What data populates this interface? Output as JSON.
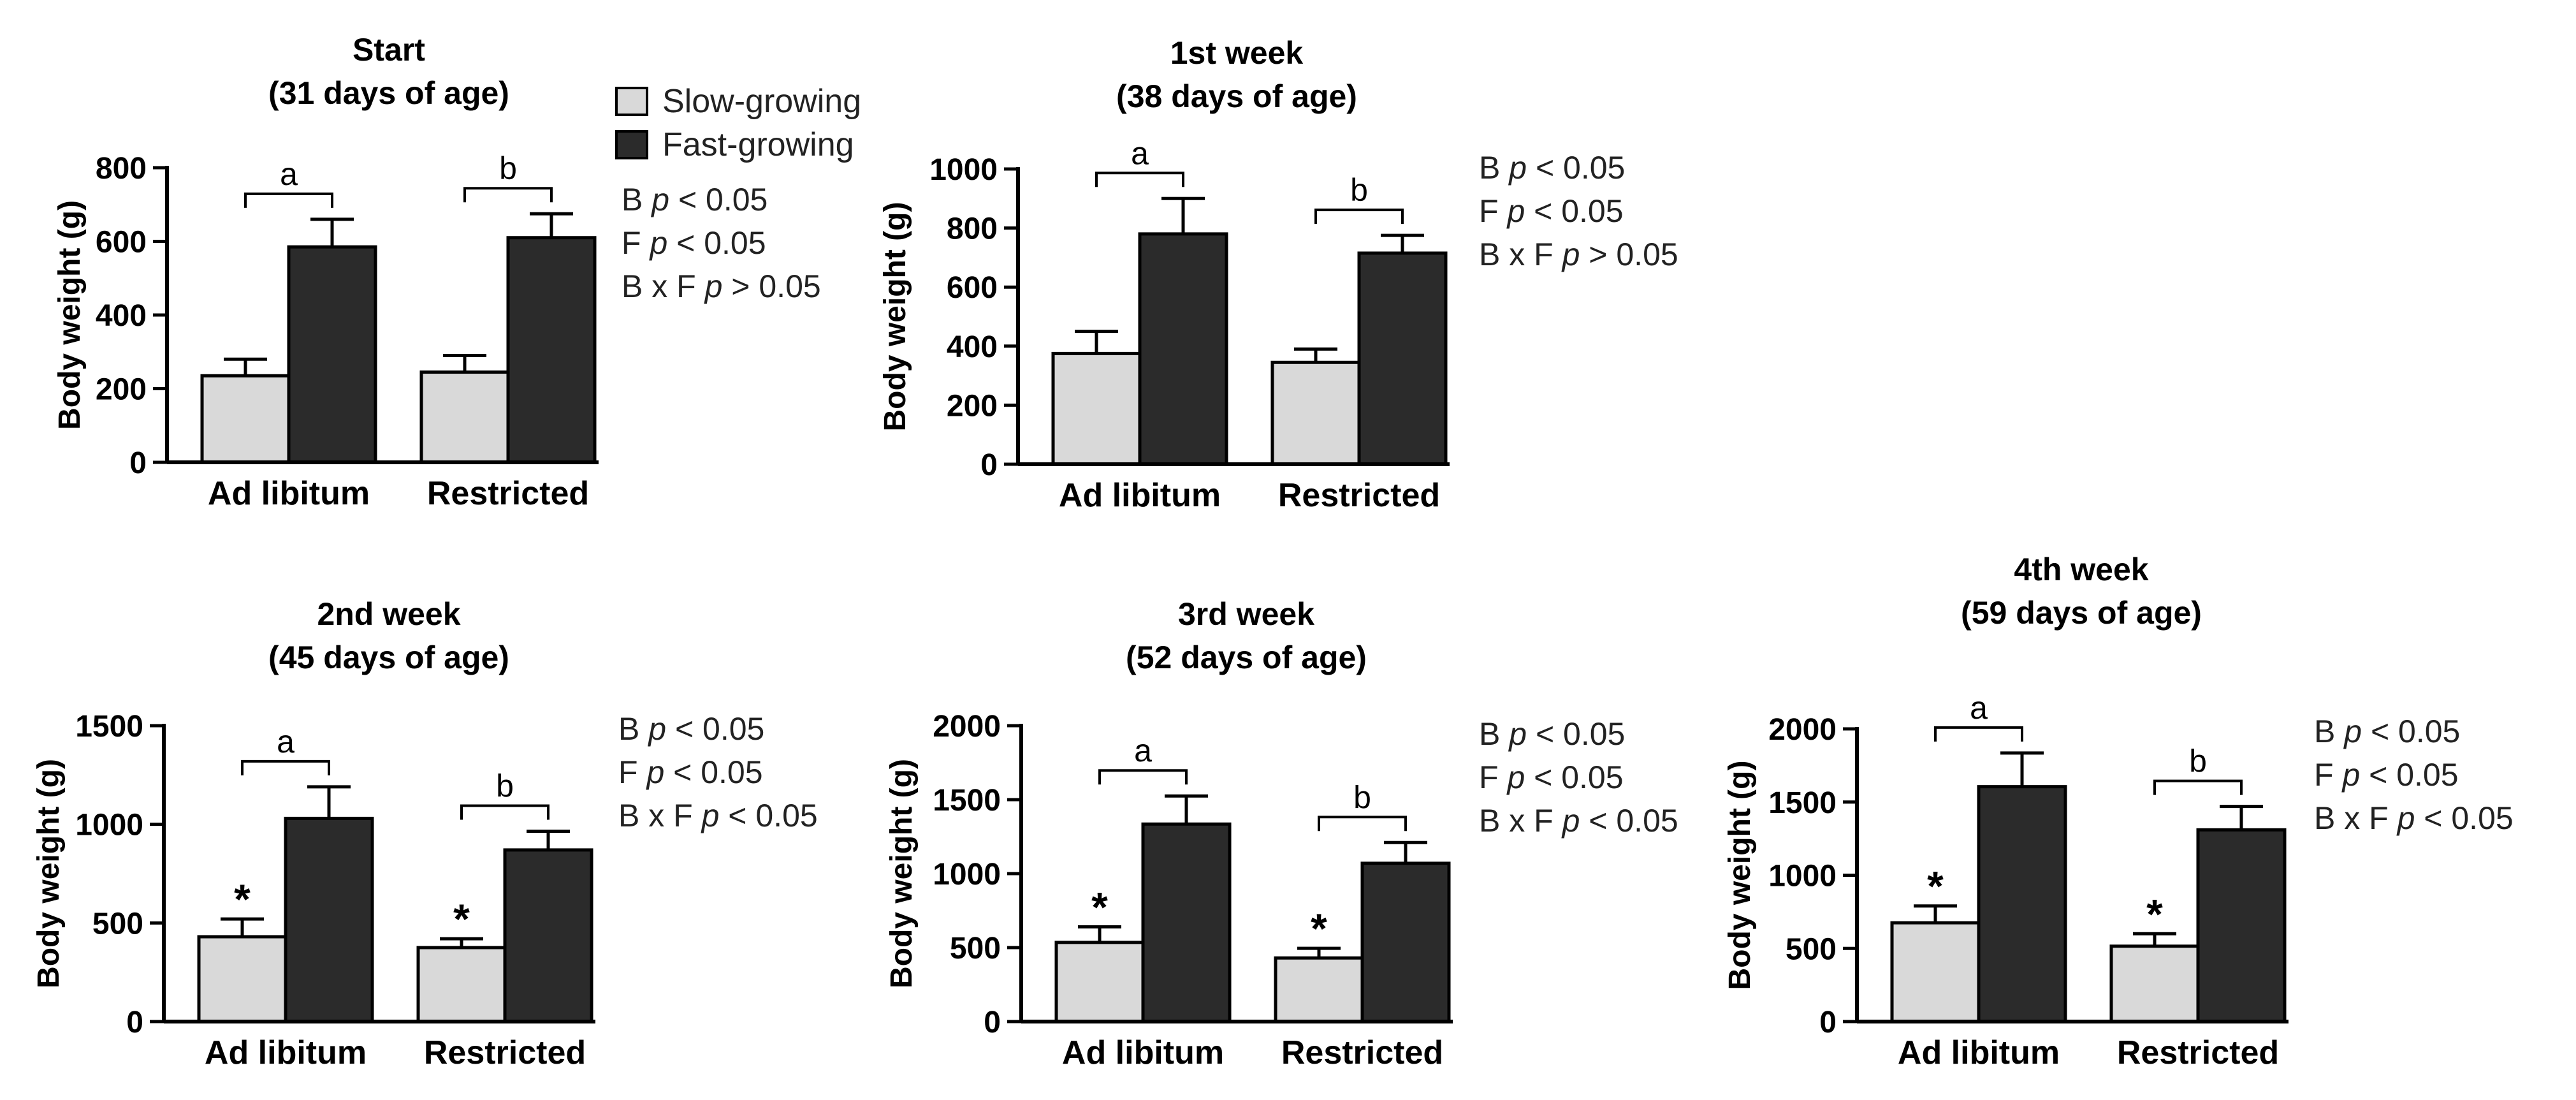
{
  "colors": {
    "slow": "#d9d9d9",
    "fast": "#2b2b2b",
    "axis": "#000000"
  },
  "legend": {
    "slow_label": "Slow-growing",
    "fast_label": "Fast-growing"
  },
  "chart_data": [
    {
      "type": "bar",
      "title": "Start",
      "subtitle": "(31 days of age)",
      "ylabel": "Body weight (g)",
      "ylim": [
        0,
        800
      ],
      "yticks": [
        "0",
        "200",
        "400",
        "600",
        "800"
      ],
      "categories": [
        "Ad libitum",
        "Restricted"
      ],
      "series": [
        {
          "name": "Slow-growing",
          "values": [
            235,
            245
          ],
          "errors": [
            45,
            45
          ]
        },
        {
          "name": "Fast-growing",
          "values": [
            585,
            610
          ],
          "errors": [
            75,
            65
          ]
        }
      ],
      "group_letters": [
        "a",
        "b"
      ],
      "asterisks": [
        false,
        false
      ],
      "stats": [
        {
          "label": "B ",
          "p": "p",
          "rel": " < 0.05"
        },
        {
          "label": "F ",
          "p": "p",
          "rel": " < 0.05"
        },
        {
          "label": "B x F ",
          "p": "p",
          "rel": " > 0.05"
        }
      ]
    },
    {
      "type": "bar",
      "title": "1st week",
      "subtitle": "(38 days of age)",
      "ylabel": "Body weight (g)",
      "ylim": [
        0,
        1000
      ],
      "yticks": [
        "0",
        "200",
        "400",
        "600",
        "800",
        "1000"
      ],
      "categories": [
        "Ad libitum",
        "Restricted"
      ],
      "series": [
        {
          "name": "Slow-growing",
          "values": [
            375,
            345
          ],
          "errors": [
            75,
            45
          ]
        },
        {
          "name": "Fast-growing",
          "values": [
            780,
            715
          ],
          "errors": [
            120,
            60
          ]
        }
      ],
      "group_letters": [
        "a",
        "b"
      ],
      "asterisks": [
        false,
        false
      ],
      "stats": [
        {
          "label": "B ",
          "p": "p",
          "rel": " < 0.05"
        },
        {
          "label": "F ",
          "p": "p",
          "rel": " < 0.05"
        },
        {
          "label": "B x F ",
          "p": "p",
          "rel": " > 0.05"
        }
      ]
    },
    {
      "type": "bar",
      "title": "2nd week",
      "subtitle": "(45 days of age)",
      "ylabel": "Body weight (g)",
      "ylim": [
        0,
        1500
      ],
      "yticks": [
        "0",
        "500",
        "1000",
        "1500"
      ],
      "categories": [
        "Ad libitum",
        "Restricted"
      ],
      "series": [
        {
          "name": "Slow-growing",
          "values": [
            430,
            375
          ],
          "errors": [
            90,
            45
          ]
        },
        {
          "name": "Fast-growing",
          "values": [
            1030,
            870
          ],
          "errors": [
            160,
            95
          ]
        }
      ],
      "group_letters": [
        "a",
        "b"
      ],
      "asterisks": [
        true,
        true
      ],
      "stats": [
        {
          "label": "B ",
          "p": "p",
          "rel": " < 0.05"
        },
        {
          "label": "F ",
          "p": "p",
          "rel": " < 0.05"
        },
        {
          "label": "B x F ",
          "p": "p",
          "rel": " < 0.05"
        }
      ]
    },
    {
      "type": "bar",
      "title": "3rd week",
      "subtitle": "(52 days of age)",
      "ylabel": "Body weight (g)",
      "ylim": [
        0,
        2000
      ],
      "yticks": [
        "0",
        "500",
        "1000",
        "1500",
        "2000"
      ],
      "categories": [
        "Ad libitum",
        "Restricted"
      ],
      "series": [
        {
          "name": "Slow-growing",
          "values": [
            535,
            430
          ],
          "errors": [
            105,
            65
          ]
        },
        {
          "name": "Fast-growing",
          "values": [
            1335,
            1070
          ],
          "errors": [
            190,
            140
          ]
        }
      ],
      "group_letters": [
        "a",
        "b"
      ],
      "asterisks": [
        true,
        true
      ],
      "stats": [
        {
          "label": "B ",
          "p": "p",
          "rel": " < 0.05"
        },
        {
          "label": "F ",
          "p": "p",
          "rel": " < 0.05"
        },
        {
          "label": "B x F ",
          "p": "p",
          "rel": " < 0.05"
        }
      ]
    },
    {
      "type": "bar",
      "title": "4th week",
      "subtitle": "(59 days of age)",
      "ylabel": "Body weight (g)",
      "ylim": [
        0,
        2000
      ],
      "yticks": [
        "0",
        "500",
        "1000",
        "1500",
        "2000"
      ],
      "categories": [
        "Ad libitum",
        "Restricted"
      ],
      "series": [
        {
          "name": "Slow-growing",
          "values": [
            675,
            515
          ],
          "errors": [
            115,
            85
          ]
        },
        {
          "name": "Fast-growing",
          "values": [
            1605,
            1310
          ],
          "errors": [
            230,
            160
          ]
        }
      ],
      "group_letters": [
        "a",
        "b"
      ],
      "asterisks": [
        true,
        true
      ],
      "stats": [
        {
          "label": "B ",
          "p": "p",
          "rel": " < 0.05"
        },
        {
          "label": "F ",
          "p": "p",
          "rel": " < 0.05"
        },
        {
          "label": "B x F ",
          "p": "p",
          "rel": " < 0.05"
        }
      ]
    }
  ]
}
